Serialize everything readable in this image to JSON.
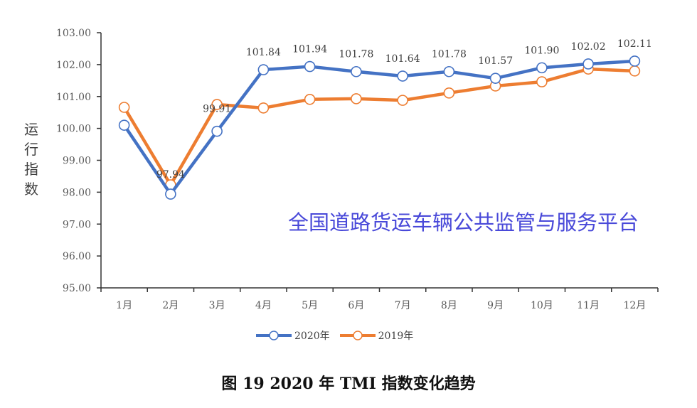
{
  "chart_data": {
    "type": "line",
    "title": "图 19  2020 年 TMI 指数变化趋势",
    "xlabel": "",
    "ylabel": "运行指数",
    "categories": [
      "1月",
      "2月",
      "3月",
      "4月",
      "5月",
      "6月",
      "7月",
      "8月",
      "9月",
      "10月",
      "11月",
      "12月"
    ],
    "ylim": [
      95,
      103
    ],
    "yticks": [
      "95.00",
      "96.00",
      "97.00",
      "98.00",
      "99.00",
      "100.00",
      "101.00",
      "102.00",
      "103.00"
    ],
    "grid": false,
    "legend": "bottom",
    "series": [
      {
        "name": "2020年",
        "color": "#4472c4",
        "values": [
          100.1,
          97.94,
          99.91,
          101.84,
          101.94,
          101.78,
          101.64,
          101.78,
          101.57,
          101.9,
          102.02,
          102.11
        ],
        "labels": [
          "",
          "97.94",
          "99.91",
          "101.84",
          "101.94",
          "101.78",
          "101.64",
          "101.78",
          "101.57",
          "101.90",
          "102.02",
          "102.11"
        ]
      },
      {
        "name": "2019年",
        "color": "#ed7d31",
        "values": [
          100.66,
          98.23,
          100.75,
          100.64,
          100.91,
          100.93,
          100.88,
          101.11,
          101.33,
          101.46,
          101.86,
          101.8
        ]
      }
    ]
  },
  "watermark": "全国道路货运车辆公共监管与服务平台"
}
